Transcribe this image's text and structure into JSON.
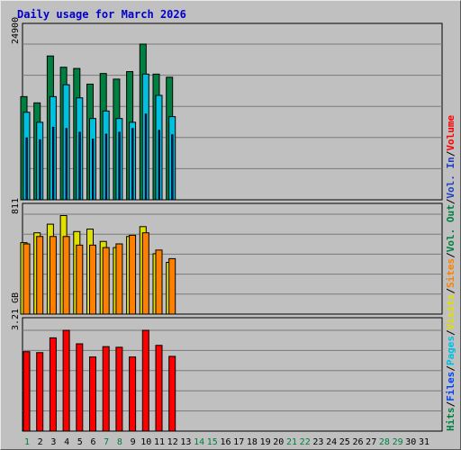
{
  "title": "Daily usage for March 2026",
  "colors": {
    "background": "#c0c0c0",
    "title": "#0000cc",
    "hits": "#008040",
    "files": "#0040ff",
    "pages": "#00c0e0",
    "visits": "#e0e000",
    "sites": "#ff8000",
    "kbytes_in": "#2040c0",
    "kbytes_out": "#008040",
    "volume": "#ff0000",
    "weekend_label": "#008040",
    "weekday_label": "#000000"
  },
  "chart_data": [
    {
      "type": "bar",
      "panel": "top",
      "axis_max_label": "24900",
      "ylim": [
        0,
        24900
      ],
      "x": [
        1,
        2,
        3,
        4,
        5,
        6,
        7,
        8,
        9,
        10,
        11,
        12
      ],
      "series": [
        {
          "name": "Hits",
          "values": [
            16500,
            15500,
            23000,
            21200,
            21000,
            18500,
            20200,
            19300,
            20500,
            24900,
            20100,
            19600
          ]
        },
        {
          "name": "Files",
          "values": [
            9900,
            9600,
            11600,
            11400,
            10800,
            9700,
            10500,
            10800,
            11400,
            13700,
            11100,
            10400
          ]
        },
        {
          "name": "Pages",
          "values": [
            14000,
            12400,
            16500,
            18400,
            16300,
            13000,
            14200,
            13000,
            12400,
            20100,
            16700,
            13300
          ]
        }
      ],
      "legend": [
        "Hits",
        "Files",
        "Pages"
      ]
    },
    {
      "type": "bar",
      "panel": "middle",
      "axis_max_label": "811",
      "ylim": [
        0,
        811
      ],
      "x": [
        1,
        2,
        3,
        4,
        5,
        6,
        7,
        8,
        9,
        10,
        11,
        12
      ],
      "series": [
        {
          "name": "Visits",
          "values": [
            580,
            660,
            730,
            800,
            670,
            690,
            590,
            540,
            630,
            710,
            490,
            420
          ]
        },
        {
          "name": "Sites",
          "values": [
            570,
            630,
            630,
            630,
            560,
            560,
            540,
            570,
            640,
            660,
            520,
            450
          ]
        }
      ],
      "legend": [
        "Visits",
        "Sites"
      ]
    },
    {
      "type": "bar",
      "panel": "bottom",
      "axis_max_label": "3.21 GB",
      "ylim": [
        0,
        3.21
      ],
      "x": [
        1,
        2,
        3,
        4,
        5,
        6,
        7,
        8,
        9,
        10,
        11,
        12
      ],
      "series": [
        {
          "name": "Volume",
          "values": [
            2.53,
            2.5,
            2.97,
            3.21,
            2.78,
            2.36,
            2.69,
            2.67,
            2.36,
            3.21,
            2.73,
            2.38
          ]
        }
      ],
      "legend": [
        "Volume",
        "Vol. In",
        "Vol. Out"
      ]
    }
  ],
  "x_labels": [
    "1",
    "2",
    "3",
    "4",
    "5",
    "6",
    "7",
    "8",
    "9",
    "10",
    "11",
    "12",
    "13",
    "14",
    "15",
    "16",
    "17",
    "18",
    "19",
    "20",
    "21",
    "22",
    "23",
    "24",
    "25",
    "26",
    "27",
    "28",
    "29",
    "30",
    "31"
  ],
  "weekend_days": [
    1,
    7,
    8,
    14,
    15,
    21,
    22,
    28,
    29
  ],
  "side_legend": [
    {
      "text": "Hits",
      "color": "#008040"
    },
    {
      "text": "Files",
      "color": "#0040ff"
    },
    {
      "text": "Pages",
      "color": "#00c0e0"
    },
    {
      "text": "Visits",
      "color": "#e0e000"
    },
    {
      "text": "Sites",
      "color": "#ff8000"
    },
    {
      "text": "Vol. Out",
      "color": "#008040"
    },
    {
      "text": "Vol. In",
      "color": "#2040c0"
    },
    {
      "text": "Volume",
      "color": "#ff0000"
    }
  ]
}
